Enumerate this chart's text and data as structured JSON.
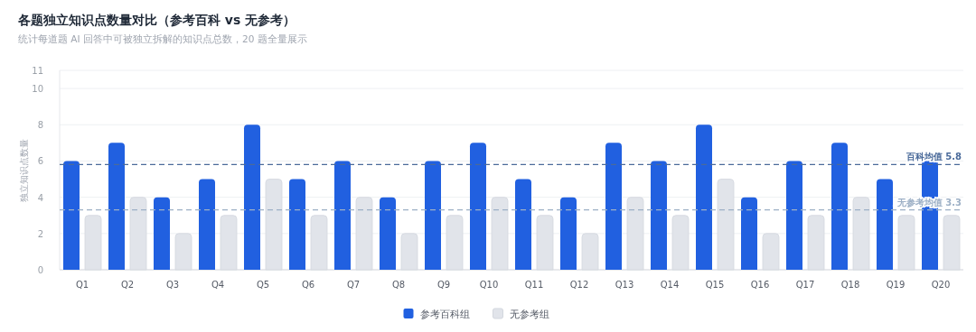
{
  "chart_data": {
    "type": "bar",
    "title": "各题独立知识点数量对比（参考百科 vs 无参考）",
    "subtitle": "统计每道题 AI 回答中可被独立拆解的知识点总数，20 题全量展示",
    "ylabel": "独立知识点数量",
    "categories": [
      "Q1",
      "Q2",
      "Q3",
      "Q4",
      "Q5",
      "Q6",
      "Q7",
      "Q8",
      "Q9",
      "Q10",
      "Q11",
      "Q12",
      "Q13",
      "Q14",
      "Q15",
      "Q16",
      "Q17",
      "Q18",
      "Q19",
      "Q20"
    ],
    "series": [
      {
        "name": "参考百科组",
        "color": "#2160e0",
        "values": [
          6,
          7,
          4,
          5,
          8,
          5,
          6,
          4,
          6,
          7,
          5,
          4,
          7,
          6,
          8,
          4,
          6,
          7,
          5,
          6
        ]
      },
      {
        "name": "无参考组",
        "color": "#e1e4ea",
        "values": [
          3,
          4,
          2,
          3,
          5,
          3,
          4,
          2,
          3,
          4,
          3,
          2,
          4,
          3,
          5,
          2,
          3,
          4,
          3,
          3
        ]
      }
    ],
    "ylim": [
      0,
      11
    ],
    "yticks": [
      0,
      2,
      4,
      6,
      8,
      10,
      11
    ],
    "grid": "y",
    "legend": "bottom",
    "ref_lines": [
      {
        "axis": "y",
        "value": 5.8,
        "label": "百科均值 5.8",
        "color": "#4a6a9a",
        "line_style": "dashed"
      },
      {
        "axis": "y",
        "value": 3.3,
        "label": "无参考均值 3.3",
        "color": "#9db0c6",
        "line_style": "dashed"
      }
    ]
  }
}
